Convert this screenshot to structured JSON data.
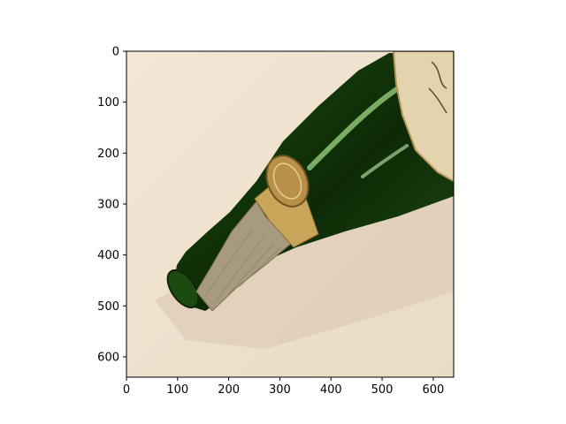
{
  "chart_data": {
    "type": "image",
    "title": "",
    "xlabel": "",
    "ylabel": "",
    "xlim": [
      0,
      640
    ],
    "ylim": [
      640,
      0
    ],
    "xticks": [
      0,
      100,
      200,
      300,
      400,
      500,
      600
    ],
    "yticks": [
      0,
      100,
      200,
      300,
      400,
      500,
      600
    ],
    "grid": false,
    "image": {
      "subject": "green champagne bottle lying diagonally on a cream surface, foil-wrapped neck with gold medallion label",
      "colors": {
        "background": "#efe2d0",
        "shadow": "#dcccb7",
        "glass": "#1f4a12",
        "glass_dark": "#0d2a06",
        "glass_highlight": "#7fb86a",
        "foil": "#a89a7e",
        "label_gold": "#c9a55a",
        "label_cream": "#e6d8b5"
      }
    }
  }
}
